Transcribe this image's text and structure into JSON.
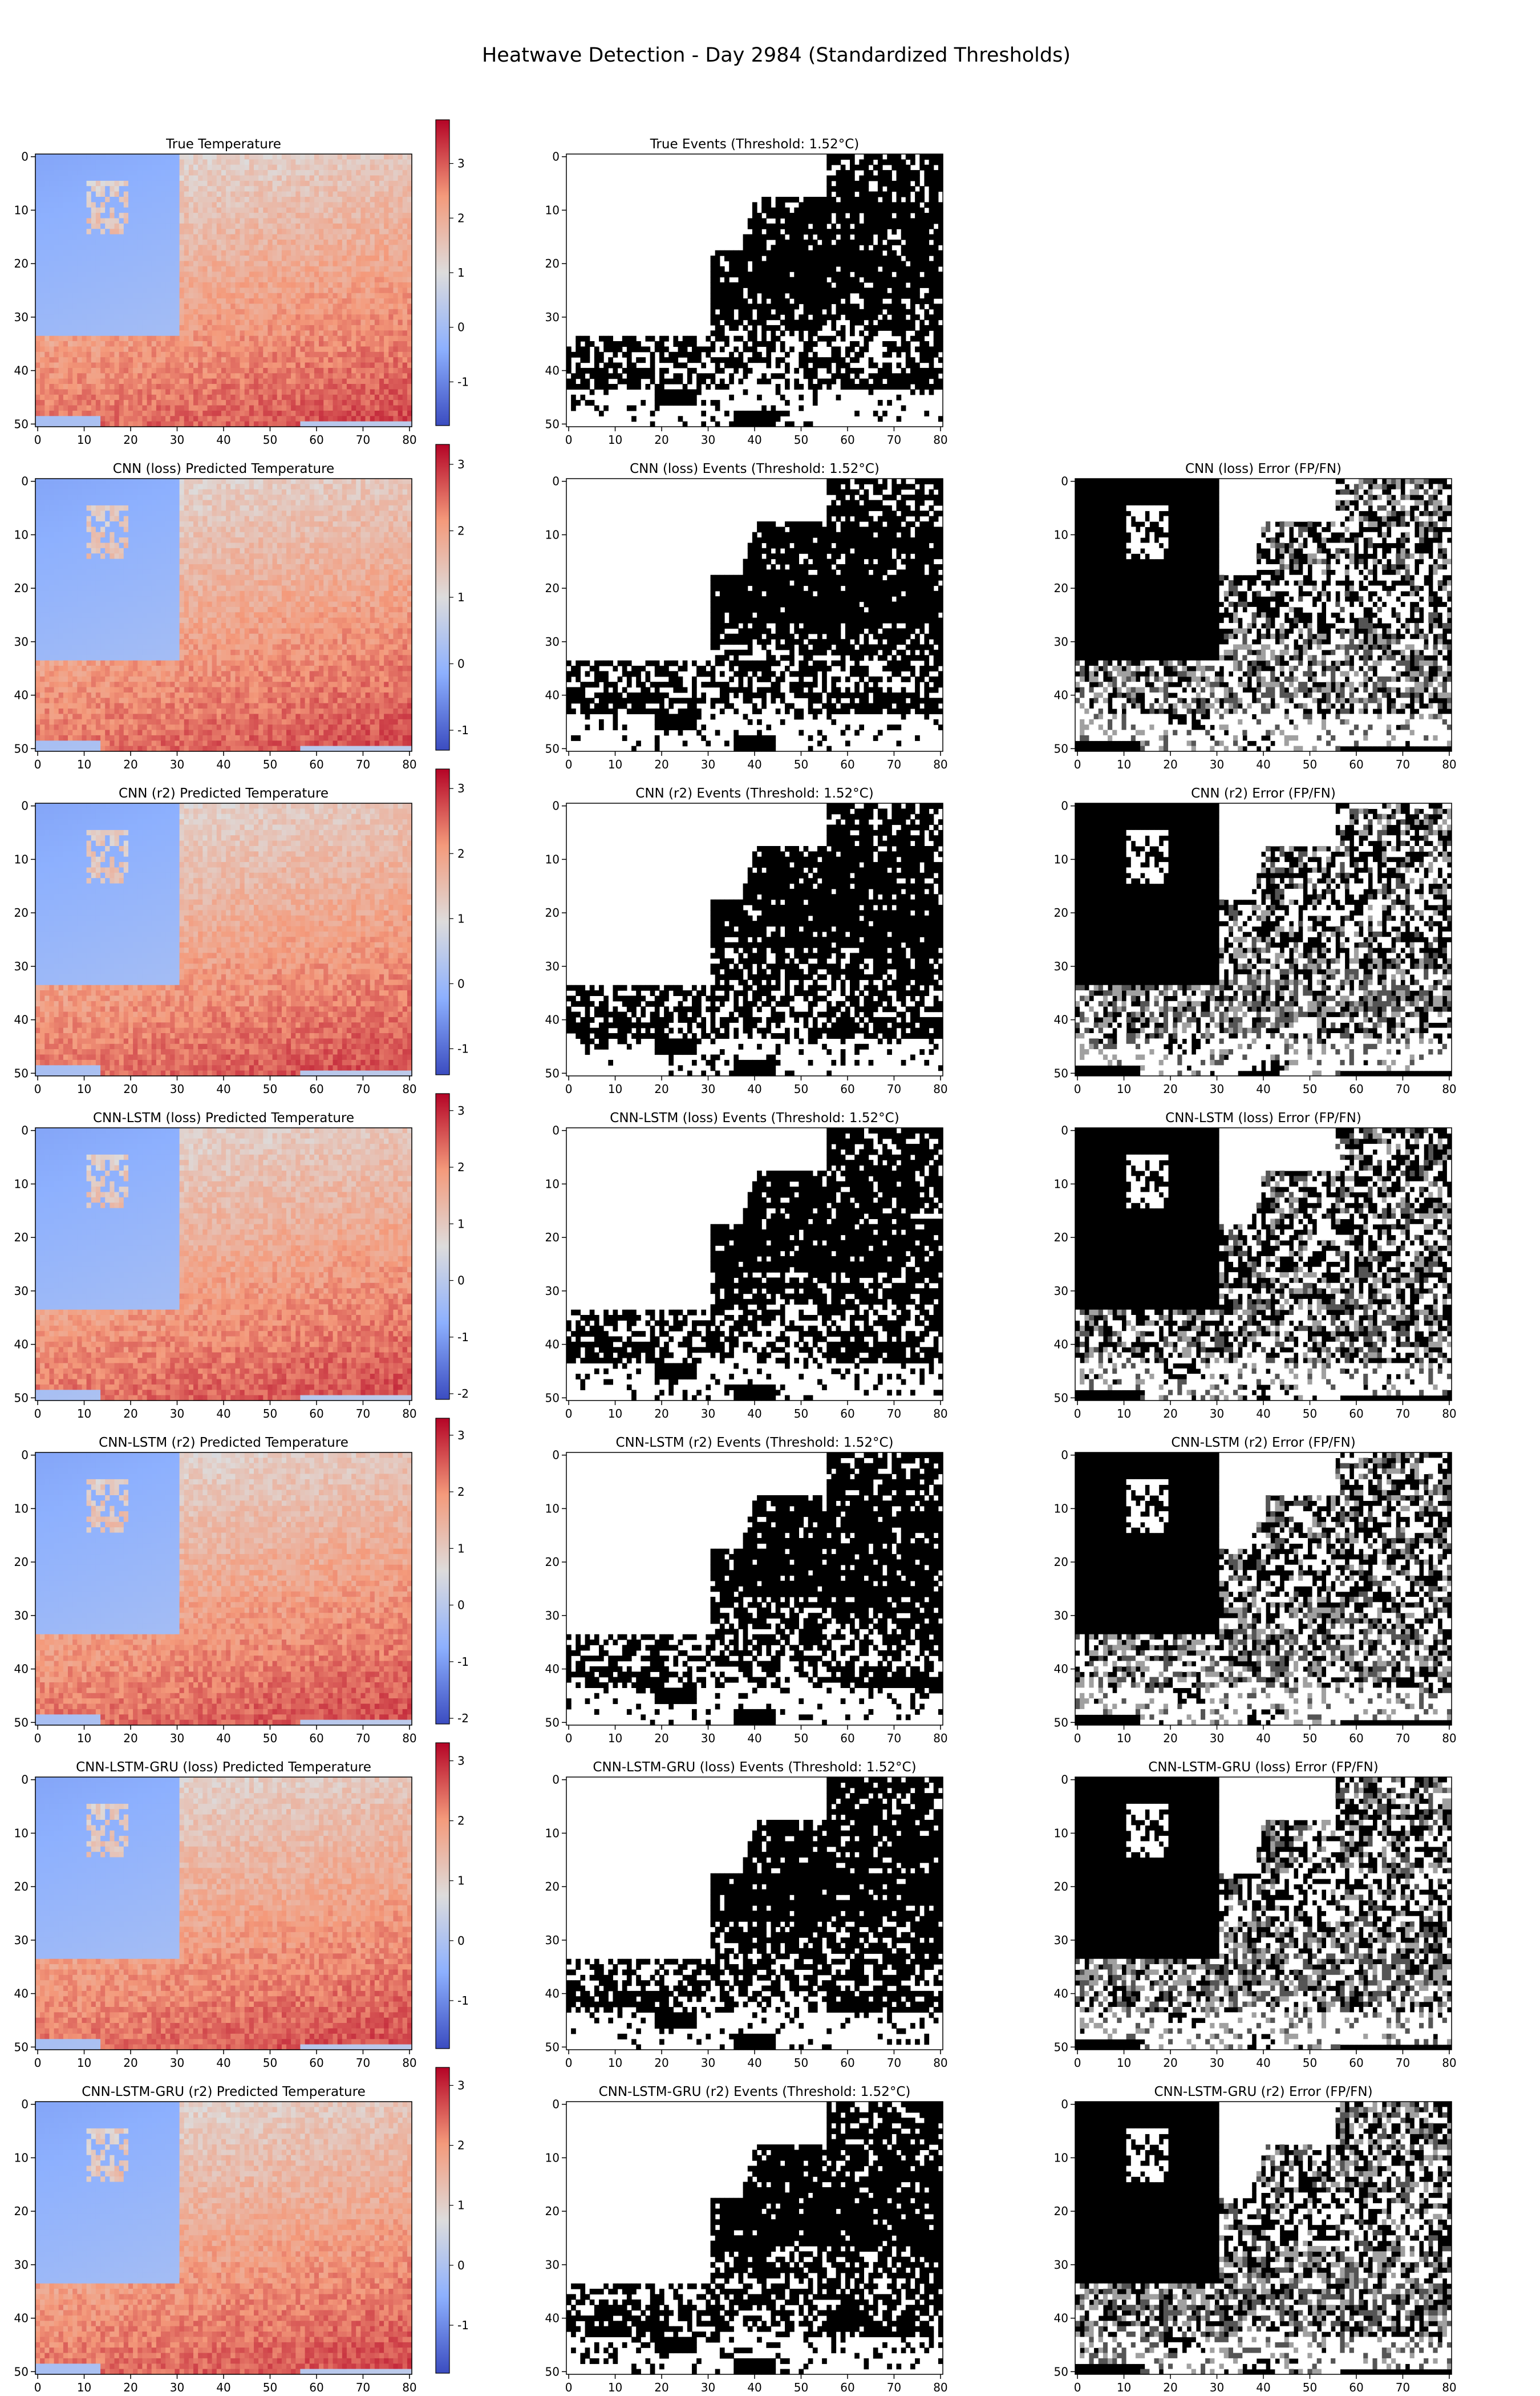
{
  "figure": {
    "title": "Heatwave Detection - Day 2984 (Standardized Thresholds)"
  },
  "chart_data": [
    {
      "type": "heatmap",
      "panel": "temperature",
      "title": "True Temperature",
      "colormap": "coolwarm",
      "xlim": [
        0,
        80
      ],
      "ylim": [
        50,
        0
      ],
      "xticks": [
        0,
        10,
        20,
        30,
        40,
        50,
        60,
        70,
        80
      ],
      "yticks": [
        0,
        10,
        20,
        30,
        40,
        50
      ],
      "colorbar": {
        "range": [
          -1.8,
          3.8
        ],
        "ticks": [
          -1,
          0,
          1,
          2,
          3
        ]
      }
    },
    {
      "type": "heatmap",
      "panel": "events",
      "title": "True Events (Threshold: 1.52°C)",
      "colormap": "binary",
      "xlim": [
        0,
        80
      ],
      "ylim": [
        50,
        0
      ],
      "xticks": [
        0,
        10,
        20,
        30,
        40,
        50,
        60,
        70,
        80
      ],
      "yticks": [
        0,
        10,
        20,
        30,
        40,
        50
      ]
    },
    {
      "type": "heatmap",
      "panel": "temperature",
      "title": "CNN (loss) Predicted Temperature",
      "colormap": "coolwarm",
      "xlim": [
        0,
        80
      ],
      "ylim": [
        50,
        0
      ],
      "xticks": [
        0,
        10,
        20,
        30,
        40,
        50,
        60,
        70,
        80
      ],
      "yticks": [
        0,
        10,
        20,
        30,
        40,
        50
      ],
      "colorbar": {
        "range": [
          -1.3,
          3.3
        ],
        "ticks": [
          -1,
          0,
          1,
          2,
          3
        ]
      }
    },
    {
      "type": "heatmap",
      "panel": "events",
      "title": "CNN (loss) Events (Threshold: 1.52°C)",
      "colormap": "binary",
      "xlim": [
        0,
        80
      ],
      "ylim": [
        50,
        0
      ],
      "xticks": [
        0,
        10,
        20,
        30,
        40,
        50,
        60,
        70,
        80
      ],
      "yticks": [
        0,
        10,
        20,
        30,
        40,
        50
      ]
    },
    {
      "type": "heatmap",
      "panel": "error",
      "title": "CNN (loss) Error (FP/FN)",
      "colormap": "gray",
      "xlim": [
        0,
        80
      ],
      "ylim": [
        50,
        0
      ],
      "xticks": [
        0,
        10,
        20,
        30,
        40,
        50,
        60,
        70,
        80
      ],
      "yticks": [
        0,
        10,
        20,
        30,
        40,
        50
      ]
    },
    {
      "type": "heatmap",
      "panel": "temperature",
      "title": "CNN (r2) Predicted Temperature",
      "colormap": "coolwarm",
      "xlim": [
        0,
        80
      ],
      "ylim": [
        50,
        0
      ],
      "xticks": [
        0,
        10,
        20,
        30,
        40,
        50,
        60,
        70,
        80
      ],
      "yticks": [
        0,
        10,
        20,
        30,
        40,
        50
      ],
      "colorbar": {
        "range": [
          -1.4,
          3.3
        ],
        "ticks": [
          -1,
          0,
          1,
          2,
          3
        ]
      }
    },
    {
      "type": "heatmap",
      "panel": "events",
      "title": "CNN (r2) Events (Threshold: 1.52°C)",
      "colormap": "binary",
      "xlim": [
        0,
        80
      ],
      "ylim": [
        50,
        0
      ],
      "xticks": [
        0,
        10,
        20,
        30,
        40,
        50,
        60,
        70,
        80
      ],
      "yticks": [
        0,
        10,
        20,
        30,
        40,
        50
      ]
    },
    {
      "type": "heatmap",
      "panel": "error",
      "title": "CNN (r2) Error (FP/FN)",
      "colormap": "gray",
      "xlim": [
        0,
        80
      ],
      "ylim": [
        50,
        0
      ],
      "xticks": [
        0,
        10,
        20,
        30,
        40,
        50,
        60,
        70,
        80
      ],
      "yticks": [
        0,
        10,
        20,
        30,
        40,
        50
      ]
    },
    {
      "type": "heatmap",
      "panel": "temperature",
      "title": "CNN-LSTM (loss) Predicted Temperature",
      "colormap": "coolwarm",
      "xlim": [
        0,
        80
      ],
      "ylim": [
        50,
        0
      ],
      "xticks": [
        0,
        10,
        20,
        30,
        40,
        50,
        60,
        70,
        80
      ],
      "yticks": [
        0,
        10,
        20,
        30,
        40,
        50
      ],
      "colorbar": {
        "range": [
          -2.1,
          3.3
        ],
        "ticks": [
          -2,
          -1,
          0,
          1,
          2,
          3
        ]
      }
    },
    {
      "type": "heatmap",
      "panel": "events",
      "title": "CNN-LSTM (loss) Events (Threshold: 1.52°C)",
      "colormap": "binary",
      "xlim": [
        0,
        80
      ],
      "ylim": [
        50,
        0
      ],
      "xticks": [
        0,
        10,
        20,
        30,
        40,
        50,
        60,
        70,
        80
      ],
      "yticks": [
        0,
        10,
        20,
        30,
        40,
        50
      ]
    },
    {
      "type": "heatmap",
      "panel": "error",
      "title": "CNN-LSTM (loss) Error (FP/FN)",
      "colormap": "gray",
      "xlim": [
        0,
        80
      ],
      "ylim": [
        50,
        0
      ],
      "xticks": [
        0,
        10,
        20,
        30,
        40,
        50,
        60,
        70,
        80
      ],
      "yticks": [
        0,
        10,
        20,
        30,
        40,
        50
      ]
    },
    {
      "type": "heatmap",
      "panel": "temperature",
      "title": "CNN-LSTM (r2) Predicted Temperature",
      "colormap": "coolwarm",
      "xlim": [
        0,
        80
      ],
      "ylim": [
        50,
        0
      ],
      "xticks": [
        0,
        10,
        20,
        30,
        40,
        50,
        60,
        70,
        80
      ],
      "yticks": [
        0,
        10,
        20,
        30,
        40,
        50
      ],
      "colorbar": {
        "range": [
          -2.1,
          3.3
        ],
        "ticks": [
          -2,
          -1,
          0,
          1,
          2,
          3
        ]
      }
    },
    {
      "type": "heatmap",
      "panel": "events",
      "title": "CNN-LSTM (r2) Events (Threshold: 1.52°C)",
      "colormap": "binary",
      "xlim": [
        0,
        80
      ],
      "ylim": [
        50,
        0
      ],
      "xticks": [
        0,
        10,
        20,
        30,
        40,
        50,
        60,
        70,
        80
      ],
      "yticks": [
        0,
        10,
        20,
        30,
        40,
        50
      ]
    },
    {
      "type": "heatmap",
      "panel": "error",
      "title": "CNN-LSTM (r2) Error (FP/FN)",
      "colormap": "gray",
      "xlim": [
        0,
        80
      ],
      "ylim": [
        50,
        0
      ],
      "xticks": [
        0,
        10,
        20,
        30,
        40,
        50,
        60,
        70,
        80
      ],
      "yticks": [
        0,
        10,
        20,
        30,
        40,
        50
      ]
    },
    {
      "type": "heatmap",
      "panel": "temperature",
      "title": "CNN-LSTM-GRU (loss) Predicted Temperature",
      "colormap": "coolwarm",
      "xlim": [
        0,
        80
      ],
      "ylim": [
        50,
        0
      ],
      "xticks": [
        0,
        10,
        20,
        30,
        40,
        50,
        60,
        70,
        80
      ],
      "yticks": [
        0,
        10,
        20,
        30,
        40,
        50
      ],
      "colorbar": {
        "range": [
          -1.8,
          3.3
        ],
        "ticks": [
          -1,
          0,
          1,
          2,
          3
        ]
      }
    },
    {
      "type": "heatmap",
      "panel": "events",
      "title": "CNN-LSTM-GRU (loss) Events (Threshold: 1.52°C)",
      "colormap": "binary",
      "xlim": [
        0,
        80
      ],
      "ylim": [
        50,
        0
      ],
      "xticks": [
        0,
        10,
        20,
        30,
        40,
        50,
        60,
        70,
        80
      ],
      "yticks": [
        0,
        10,
        20,
        30,
        40,
        50
      ]
    },
    {
      "type": "heatmap",
      "panel": "error",
      "title": "CNN-LSTM-GRU (loss) Error (FP/FN)",
      "colormap": "gray",
      "xlim": [
        0,
        80
      ],
      "ylim": [
        50,
        0
      ],
      "xticks": [
        0,
        10,
        20,
        30,
        40,
        50,
        60,
        70,
        80
      ],
      "yticks": [
        0,
        10,
        20,
        30,
        40,
        50
      ]
    },
    {
      "type": "heatmap",
      "panel": "temperature",
      "title": "CNN-LSTM-GRU (r2) Predicted Temperature",
      "colormap": "coolwarm",
      "xlim": [
        0,
        80
      ],
      "ylim": [
        50,
        0
      ],
      "xticks": [
        0,
        10,
        20,
        30,
        40,
        50,
        60,
        70,
        80
      ],
      "yticks": [
        0,
        10,
        20,
        30,
        40,
        50
      ],
      "colorbar": {
        "range": [
          -1.8,
          3.3
        ],
        "ticks": [
          -1,
          0,
          1,
          2,
          3
        ]
      }
    },
    {
      "type": "heatmap",
      "panel": "events",
      "title": "CNN-LSTM-GRU (r2) Events (Threshold: 1.52°C)",
      "colormap": "binary",
      "xlim": [
        0,
        80
      ],
      "ylim": [
        50,
        0
      ],
      "xticks": [
        0,
        10,
        20,
        30,
        40,
        50,
        60,
        70,
        80
      ],
      "yticks": [
        0,
        10,
        20,
        30,
        40,
        50
      ]
    },
    {
      "type": "heatmap",
      "panel": "error",
      "title": "CNN-LSTM-GRU (r2) Error (FP/FN)",
      "colormap": "gray",
      "xlim": [
        0,
        80
      ],
      "ylim": [
        50,
        0
      ],
      "xticks": [
        0,
        10,
        20,
        30,
        40,
        50,
        60,
        70,
        80
      ],
      "yticks": [
        0,
        10,
        20,
        30,
        40,
        50
      ]
    }
  ]
}
